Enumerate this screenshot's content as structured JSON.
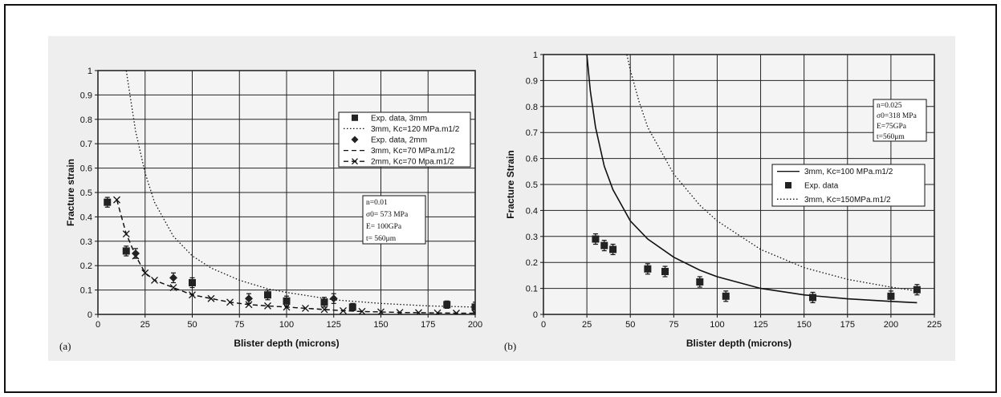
{
  "chart_data": [
    {
      "type": "scatter",
      "panel_label": "(a)",
      "xlabel": "Blister depth (microns)",
      "ylabel": "Fracture strain",
      "xlim": [
        0,
        200
      ],
      "ylim": [
        0,
        1
      ],
      "xticks": [
        0,
        25,
        50,
        75,
        100,
        125,
        150,
        175,
        200
      ],
      "yticks": [
        0,
        0.1,
        0.2,
        0.3,
        0.4,
        0.5,
        0.6,
        0.7,
        0.8,
        0.9,
        1
      ],
      "grid": true,
      "legend_position": "upper-right",
      "series": [
        {
          "name": "Exp. data, 3mm",
          "style": "square",
          "x": [
            5,
            15,
            50,
            90,
            100,
            120,
            135,
            185,
            200
          ],
          "y": [
            0.46,
            0.26,
            0.13,
            0.08,
            0.055,
            0.05,
            0.03,
            0.04,
            0.03
          ],
          "err": [
            0.02,
            0.02,
            0.02,
            0.02,
            0.02,
            0.02,
            0.015,
            0.015,
            0.02
          ]
        },
        {
          "name": "3mm, Kc=120 MPa.m1/2",
          "style": "dotted",
          "x": [
            15,
            17,
            20,
            25,
            30,
            40,
            50,
            60,
            75,
            90,
            100,
            125,
            150,
            175,
            200
          ],
          "y": [
            1.0,
            0.9,
            0.75,
            0.58,
            0.46,
            0.32,
            0.24,
            0.19,
            0.14,
            0.105,
            0.09,
            0.06,
            0.045,
            0.035,
            0.03
          ]
        },
        {
          "name": "Exp. data, 2mm",
          "style": "diamond",
          "x": [
            20,
            40,
            80,
            125
          ],
          "y": [
            0.25,
            0.15,
            0.065,
            0.065
          ],
          "err": [
            0.02,
            0.02,
            0.02,
            0.02
          ]
        },
        {
          "name": "3mm, Kc=70 MPa.m1/2",
          "style": "dashed",
          "x": [
            10,
            15,
            20,
            25,
            30,
            40,
            50,
            60,
            70,
            80,
            90,
            100,
            110,
            120,
            130,
            140,
            150,
            160,
            170,
            180,
            190,
            200
          ],
          "y": [
            0.47,
            0.33,
            0.24,
            0.17,
            0.14,
            0.11,
            0.08,
            0.065,
            0.05,
            0.04,
            0.035,
            0.03,
            0.025,
            0.02,
            0.015,
            0.012,
            0.01,
            0.008,
            0.007,
            0.006,
            0.005,
            0.005
          ]
        },
        {
          "name": "2mm, Kc=70 Mpa.m1/2",
          "style": "dash-x",
          "x": [
            10,
            15,
            20,
            25,
            30,
            40,
            50,
            60,
            70,
            80,
            90,
            100,
            110,
            120,
            130,
            140,
            150,
            160,
            170,
            180,
            190,
            200
          ],
          "y": [
            0.47,
            0.33,
            0.24,
            0.17,
            0.14,
            0.11,
            0.08,
            0.065,
            0.05,
            0.04,
            0.035,
            0.03,
            0.025,
            0.02,
            0.015,
            0.012,
            0.01,
            0.008,
            0.007,
            0.006,
            0.005,
            0.005
          ]
        }
      ],
      "annotation": [
        "n=0.01",
        "σ0= 573 MPa",
        "E= 100GPa",
        "t= 560μm"
      ]
    },
    {
      "type": "scatter",
      "panel_label": "(b)",
      "xlabel": "Blister depth (microns)",
      "ylabel": "Fracture Strain",
      "xlim": [
        0,
        225
      ],
      "ylim": [
        0,
        1
      ],
      "xticks": [
        0,
        25,
        50,
        75,
        100,
        125,
        150,
        175,
        200,
        225
      ],
      "yticks": [
        0,
        0.1,
        0.2,
        0.3,
        0.4,
        0.5,
        0.6,
        0.7,
        0.8,
        0.9,
        1
      ],
      "grid": true,
      "legend_position": "center-right",
      "series": [
        {
          "name": "3mm, Kc=100 MPa.m1/2",
          "style": "solid",
          "x": [
            25,
            27,
            30,
            35,
            40,
            50,
            60,
            75,
            90,
            100,
            125,
            150,
            175,
            200,
            215
          ],
          "y": [
            1.0,
            0.86,
            0.72,
            0.57,
            0.48,
            0.36,
            0.29,
            0.22,
            0.17,
            0.145,
            0.1,
            0.075,
            0.06,
            0.05,
            0.045
          ]
        },
        {
          "name": "Exp. data",
          "style": "square",
          "x": [
            30,
            35,
            40,
            60,
            70,
            90,
            105,
            155,
            200,
            215
          ],
          "y": [
            0.29,
            0.265,
            0.25,
            0.175,
            0.165,
            0.125,
            0.07,
            0.065,
            0.07,
            0.095
          ],
          "err": [
            0.02,
            0.02,
            0.02,
            0.02,
            0.02,
            0.02,
            0.02,
            0.02,
            0.02,
            0.02
          ]
        },
        {
          "name": "3mm, Kc=150MPa.m1/2",
          "style": "dotted",
          "x": [
            48,
            50,
            55,
            60,
            75,
            90,
            100,
            125,
            150,
            175,
            200,
            215
          ],
          "y": [
            1.0,
            0.94,
            0.82,
            0.72,
            0.54,
            0.42,
            0.36,
            0.25,
            0.18,
            0.135,
            0.105,
            0.09
          ]
        }
      ],
      "annotation": [
        "n=0.025",
        "σ0=318 MPa",
        "E=75GPa",
        "t=560μm"
      ]
    }
  ],
  "colors": {
    "page": "#ffffff",
    "panel": "#eeeeee",
    "ink": "#111111"
  }
}
